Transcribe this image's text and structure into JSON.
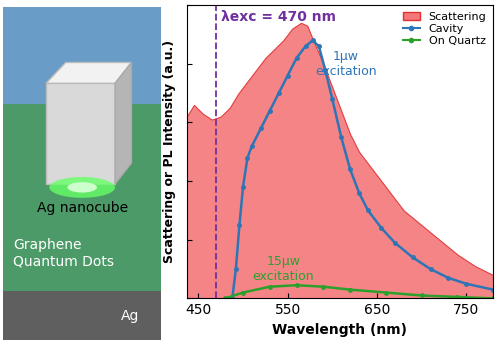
{
  "diagram": {
    "layers": [
      {
        "label": "Ag nanocube"
      },
      {
        "label": "Graphene\nQuantum Dots"
      },
      {
        "label": "Ag"
      }
    ]
  },
  "chart_data": {
    "type": "line",
    "x_label": "Wavelength (nm)",
    "y_label": "Scattering or PL Intensity (a.u.)",
    "xlim": [
      437,
      780
    ],
    "xticks": [
      450,
      550,
      650,
      750
    ],
    "ylim": [
      0,
      1
    ],
    "yticks": [
      0,
      0.2,
      0.4,
      0.6,
      0.8,
      1.0
    ],
    "tick_labels": "x",
    "legend": "upper right",
    "vline": {
      "x": 470,
      "label": "λexc = 470 nm",
      "color": "#7030a0",
      "line_style": "dashed"
    },
    "annotations": [
      {
        "text": "1μw\nexcitation",
        "x": 615,
        "y": 0.8,
        "color": "#2e75b6"
      },
      {
        "text": "15μw\nexcitation",
        "x": 545,
        "y": 0.1,
        "color": "#2ca02c"
      }
    ],
    "series": [
      {
        "name": "Scattering",
        "type": "area",
        "color": "#f4777a",
        "x": [
          437,
          445,
          455,
          465,
          475,
          485,
          495,
          505,
          515,
          525,
          535,
          545,
          555,
          565,
          572,
          580,
          590,
          600,
          610,
          620,
          630,
          640,
          650,
          665,
          680,
          700,
          720,
          740,
          760,
          780
        ],
        "values": [
          0.62,
          0.66,
          0.63,
          0.61,
          0.62,
          0.65,
          0.7,
          0.74,
          0.78,
          0.82,
          0.85,
          0.88,
          0.92,
          0.94,
          0.93,
          0.87,
          0.8,
          0.72,
          0.64,
          0.56,
          0.5,
          0.46,
          0.42,
          0.36,
          0.3,
          0.25,
          0.2,
          0.15,
          0.11,
          0.08
        ]
      },
      {
        "name": "Cavity",
        "type": "line",
        "color": "#2e75b6",
        "marker": "o",
        "x": [
          488,
          492,
          496,
          500,
          505,
          510,
          520,
          530,
          540,
          550,
          560,
          570,
          578,
          585,
          592,
          600,
          610,
          620,
          630,
          640,
          655,
          670,
          690,
          710,
          730,
          750,
          780
        ],
        "values": [
          0.0,
          0.1,
          0.25,
          0.38,
          0.48,
          0.52,
          0.58,
          0.64,
          0.7,
          0.76,
          0.82,
          0.86,
          0.88,
          0.86,
          0.78,
          0.68,
          0.55,
          0.44,
          0.36,
          0.3,
          0.24,
          0.19,
          0.14,
          0.1,
          0.07,
          0.05,
          0.03
        ]
      },
      {
        "name": "On Quartz",
        "type": "line",
        "color": "#2ca02c",
        "marker": "o",
        "x": [
          480,
          500,
          530,
          560,
          590,
          620,
          660,
          700,
          740,
          780
        ],
        "values": [
          0.0,
          0.02,
          0.04,
          0.045,
          0.04,
          0.03,
          0.02,
          0.01,
          0.005,
          0.0
        ]
      }
    ]
  }
}
